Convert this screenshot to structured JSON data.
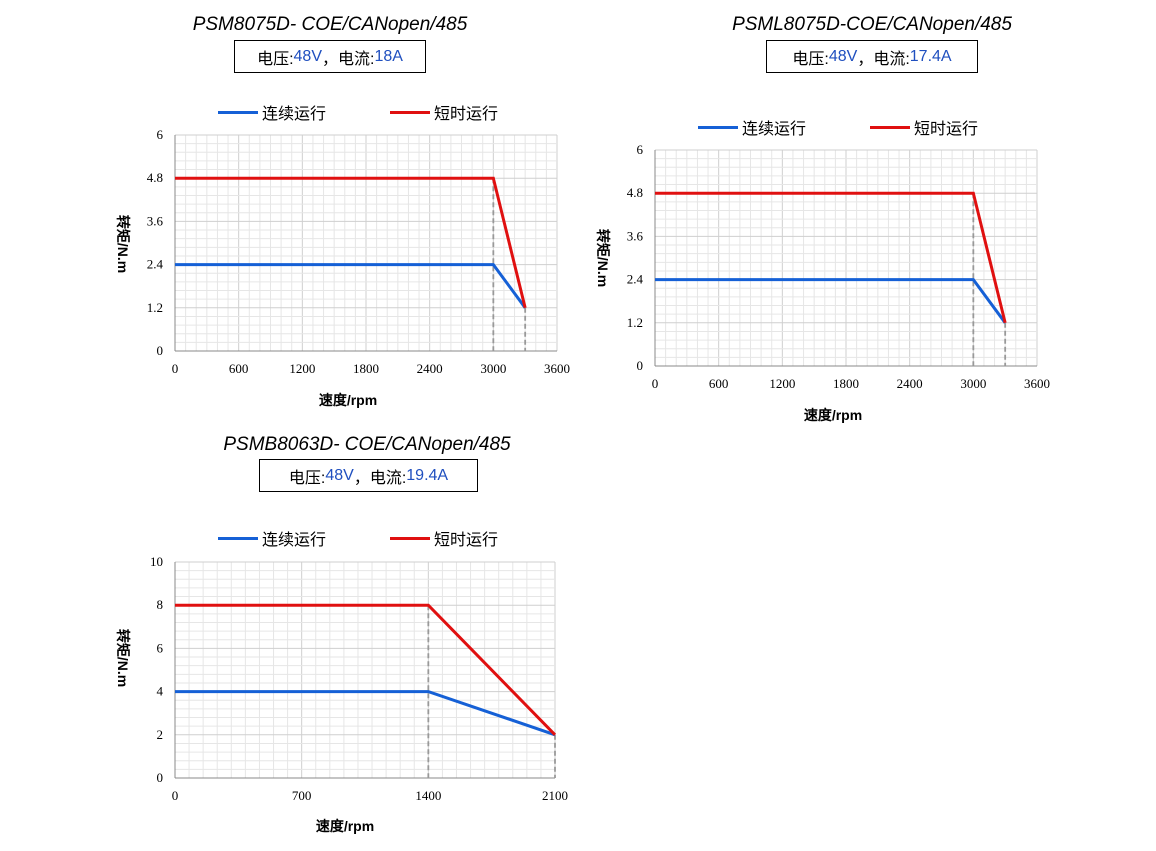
{
  "colors": {
    "continuous": "#1560d6",
    "short": "#e01010",
    "blue_text": "#1f4fbf"
  },
  "chart_data": [
    {
      "type": "line",
      "title": "PSM8075D- COE/CANopen/485",
      "spec": {
        "voltage_label": "电压:",
        "voltage": "48V",
        "sep": "，电流:",
        "current": "18A"
      },
      "xlabel": "速度/rpm",
      "ylabel": "转矩/N.m",
      "xlim": [
        0,
        3600
      ],
      "ylim": [
        0,
        6
      ],
      "xticks": [
        "0",
        "600",
        "1200",
        "1800",
        "2400",
        "3000",
        "3600"
      ],
      "yticks": [
        "0",
        "1.2",
        "2.4",
        "3.6",
        "4.8",
        "6"
      ],
      "legend_position": "top",
      "grid": true,
      "series": [
        {
          "name": "连续运行",
          "x": [
            0,
            3000,
            3300
          ],
          "y": [
            2.4,
            2.4,
            1.2
          ]
        },
        {
          "name": "短时运行",
          "x": [
            0,
            3000,
            3300
          ],
          "y": [
            4.8,
            4.8,
            1.2
          ]
        }
      ],
      "dashed_x": [
        3000,
        3300
      ]
    },
    {
      "type": "line",
      "title": "PSML8075D-COE/CANopen/485",
      "spec": {
        "voltage_label": "电压:",
        "voltage": "48V",
        "sep": "，电流:",
        "current": "17.4A"
      },
      "xlabel": "速度/rpm",
      "ylabel": "转矩/N.m",
      "xlim": [
        0,
        3600
      ],
      "ylim": [
        0,
        6
      ],
      "xticks": [
        "0",
        "600",
        "1200",
        "1800",
        "2400",
        "3000",
        "3600"
      ],
      "yticks": [
        "0",
        "1.2",
        "2.4",
        "3.6",
        "4.8",
        "6"
      ],
      "legend_position": "top",
      "grid": true,
      "series": [
        {
          "name": "连续运行",
          "x": [
            0,
            3000,
            3300
          ],
          "y": [
            2.4,
            2.4,
            1.2
          ]
        },
        {
          "name": "短时运行",
          "x": [
            0,
            3000,
            3300
          ],
          "y": [
            4.8,
            4.8,
            1.2
          ]
        }
      ],
      "dashed_x": [
        3000,
        3300
      ]
    },
    {
      "type": "line",
      "title": "PSMB8063D- COE/CANopen/485",
      "spec": {
        "voltage_label": "电压:",
        "voltage": "48V",
        "sep": "，电流:",
        "current": "19.4A"
      },
      "xlabel": "速度/rpm",
      "ylabel": "转矩/N.m",
      "xlim": [
        0,
        2100
      ],
      "ylim": [
        0,
        10
      ],
      "xticks": [
        "0",
        "700",
        "1400",
        "2100"
      ],
      "yticks": [
        "0",
        "2",
        "4",
        "6",
        "8",
        "10"
      ],
      "legend_position": "top",
      "grid": true,
      "series": [
        {
          "name": "连续运行",
          "x": [
            0,
            1400,
            2100
          ],
          "y": [
            4,
            4,
            2
          ]
        },
        {
          "name": "短时运行",
          "x": [
            0,
            1400,
            2100
          ],
          "y": [
            8,
            8,
            2
          ]
        }
      ],
      "dashed_x": [
        1400,
        2100
      ]
    }
  ]
}
